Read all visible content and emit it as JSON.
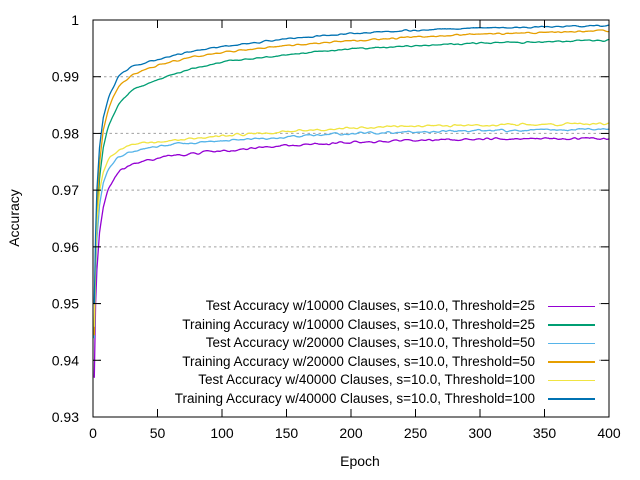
{
  "chart_data": {
    "type": "line",
    "title": "",
    "xlabel": "Epoch",
    "ylabel": "Accuracy",
    "xlim": [
      0,
      400
    ],
    "ylim": [
      0.93,
      1.0
    ],
    "x_ticks": [
      0,
      50,
      100,
      150,
      200,
      250,
      300,
      350,
      400
    ],
    "y_ticks": [
      {
        "label": "1",
        "value": 1.0
      },
      {
        "label": "0.99",
        "value": 0.99
      },
      {
        "label": "0.98",
        "value": 0.98
      },
      {
        "label": "0.97",
        "value": 0.97
      },
      {
        "label": "0.96",
        "value": 0.96
      },
      {
        "label": "0.95",
        "value": 0.95
      },
      {
        "label": "0.94",
        "value": 0.94
      },
      {
        "label": "0.93",
        "value": 0.93
      }
    ],
    "grid": {
      "horizontal": true,
      "vertical": false,
      "style": "dotted",
      "color": "#a0a0a0"
    },
    "border_color": "#000000",
    "legend_position": "inside bottom right, opaque, no box",
    "ctrl_epochs": [
      1,
      2,
      3,
      5,
      8,
      12,
      20,
      30,
      50,
      75,
      100,
      150,
      200,
      250,
      300,
      350,
      400
    ],
    "series": [
      {
        "name": "Test Accuracy w/10000 Clauses, s=10.0, Threshold=25",
        "color": "#9400d3",
        "values": [
          0.937,
          0.95,
          0.956,
          0.9625,
          0.9672,
          0.9706,
          0.9733,
          0.9746,
          0.9757,
          0.9765,
          0.9769,
          0.9779,
          0.9784,
          0.9788,
          0.979,
          0.9791,
          0.9791
        ]
      },
      {
        "name": "Training Accuracy w/10000 Clauses, s=10.0, Threshold=25",
        "color": "#009e73",
        "values": [
          0.944,
          0.9575,
          0.9645,
          0.972,
          0.9776,
          0.9815,
          0.9852,
          0.9876,
          0.9895,
          0.9913,
          0.9926,
          0.9939,
          0.9949,
          0.9955,
          0.9959,
          0.9962,
          0.9964
        ]
      },
      {
        "name": "Test Accuracy w/20000 Clauses, s=10.0, Threshold=50",
        "color": "#56b4e9",
        "values": [
          0.944,
          0.9555,
          0.9615,
          0.9672,
          0.9713,
          0.9738,
          0.9759,
          0.9769,
          0.9777,
          0.9783,
          0.9786,
          0.9794,
          0.98,
          0.9803,
          0.9805,
          0.9806,
          0.9808
        ]
      },
      {
        "name": "Training Accuracy w/20000 Clauses, s=10.0, Threshold=50",
        "color": "#e69f00",
        "values": [
          0.9445,
          0.959,
          0.9668,
          0.9746,
          0.9806,
          0.9846,
          0.9883,
          0.9903,
          0.992,
          0.9934,
          0.9943,
          0.9955,
          0.9963,
          0.997,
          0.9975,
          0.9978,
          0.9981
        ]
      },
      {
        "name": "Test Accuracy w/40000 Clauses, s=10.0, Threshold=100",
        "color": "#f0e442",
        "values": [
          0.946,
          0.958,
          0.9645,
          0.9698,
          0.9733,
          0.9756,
          0.9772,
          0.978,
          0.9785,
          0.9791,
          0.9796,
          0.9804,
          0.981,
          0.9813,
          0.9815,
          0.9816,
          0.9817
        ]
      },
      {
        "name": "Training Accuracy w/40000 Clauses, s=10.0, Threshold=100",
        "color": "#0072b2",
        "values": [
          0.95,
          0.962,
          0.97,
          0.9775,
          0.9827,
          0.9864,
          0.9902,
          0.9918,
          0.9931,
          0.9944,
          0.9953,
          0.9967,
          0.9976,
          0.9982,
          0.9986,
          0.9988,
          0.999
        ]
      }
    ]
  }
}
